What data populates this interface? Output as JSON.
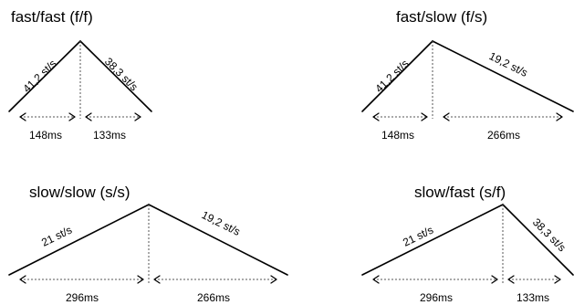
{
  "panels": [
    {
      "title": "fast/fast (f/f)",
      "rise_rate": "41,2 st/s",
      "fall_rate": "38,3 st/s",
      "rise_duration": "148ms",
      "fall_duration": "133ms"
    },
    {
      "title": "fast/slow (f/s)",
      "rise_rate": "41,2 st/s",
      "fall_rate": "19,2 st/s",
      "rise_duration": "148ms",
      "fall_duration": "266ms"
    },
    {
      "title": "slow/slow (s/s)",
      "rise_rate": "21 st/s",
      "fall_rate": "19,2 st/s",
      "rise_duration": "296ms",
      "fall_duration": "266ms"
    },
    {
      "title": "slow/fast (s/f)",
      "rise_rate": "21 st/s",
      "fall_rate": "38,3 st/s",
      "rise_duration": "296ms",
      "fall_duration": "133ms"
    }
  ]
}
